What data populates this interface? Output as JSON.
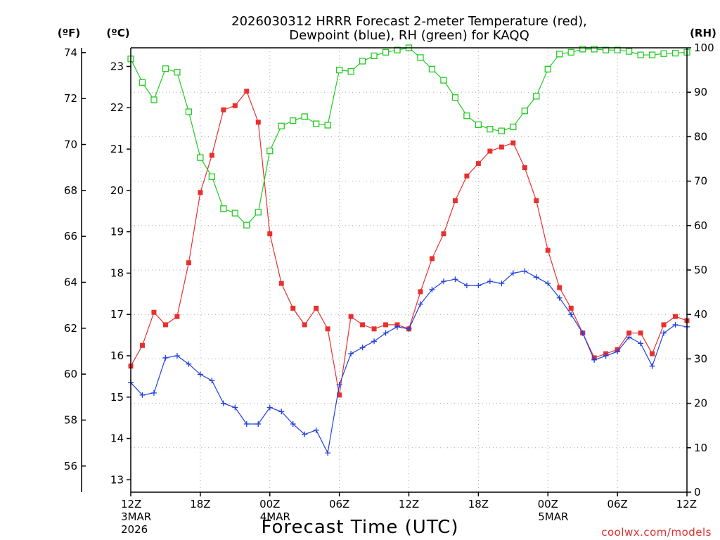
{
  "title_line1": "2026030312 HRRR Forecast 2-meter Temperature (red),",
  "title_line2": "Dewpoint (blue), RH (green) for KAQQ",
  "xlabel": "Forecast Time (UTC)",
  "credit": "coolwx.com/models",
  "unit_f": "(ºF)",
  "unit_c": "(ºC)",
  "unit_rh": "(RH)",
  "x_ticks": [
    "12Z",
    "18Z",
    "00Z",
    "06Z",
    "12Z",
    "18Z",
    "00Z",
    "06Z",
    "12Z"
  ],
  "date_labels": [
    {
      "x_hour": 0,
      "lines": [
        "3MAR",
        "2026"
      ]
    },
    {
      "x_hour": 12,
      "lines": [
        "4MAR"
      ]
    },
    {
      "x_hour": 36,
      "lines": [
        "5MAR"
      ]
    }
  ],
  "chart_data": {
    "type": "line",
    "x_unit": "forecast hour from 2026-03-03 12Z",
    "x": [
      0,
      1,
      2,
      3,
      4,
      5,
      6,
      7,
      8,
      9,
      10,
      11,
      12,
      13,
      14,
      15,
      16,
      17,
      18,
      19,
      20,
      21,
      22,
      23,
      24,
      25,
      26,
      27,
      28,
      29,
      30,
      31,
      32,
      33,
      34,
      35,
      36,
      37,
      38,
      39,
      40,
      41,
      42,
      43,
      44,
      45,
      46,
      47,
      48
    ],
    "xlim": [
      0,
      48
    ],
    "series": [
      {
        "name": "2-meter Temperature",
        "color": "#e83030",
        "marker": "filled-square",
        "axis": "celsius",
        "values": [
          15.75,
          16.25,
          17.05,
          16.75,
          16.95,
          18.25,
          19.95,
          20.85,
          21.95,
          22.05,
          22.4,
          21.65,
          18.95,
          17.75,
          17.15,
          16.75,
          17.15,
          16.65,
          15.05,
          16.95,
          16.75,
          16.65,
          16.75,
          16.75,
          16.65,
          17.55,
          18.35,
          18.95,
          19.75,
          20.35,
          20.65,
          20.95,
          21.05,
          21.15,
          20.55,
          19.75,
          18.55,
          17.65,
          17.15,
          16.55,
          15.95,
          16.05,
          16.15,
          16.55,
          16.55,
          16.05,
          16.75,
          16.95,
          16.85
        ]
      },
      {
        "name": "Dewpoint",
        "color": "#2040e0",
        "marker": "plus",
        "axis": "celsius",
        "values": [
          15.35,
          15.05,
          15.1,
          15.95,
          16.0,
          15.8,
          15.55,
          15.4,
          14.85,
          14.75,
          14.35,
          14.35,
          14.75,
          14.65,
          14.35,
          14.1,
          14.2,
          13.65,
          15.3,
          16.05,
          16.2,
          16.35,
          16.55,
          16.7,
          16.65,
          17.25,
          17.6,
          17.8,
          17.85,
          17.7,
          17.7,
          17.8,
          17.75,
          18.0,
          18.05,
          17.9,
          17.75,
          17.4,
          17.0,
          16.55,
          15.9,
          16.0,
          16.1,
          16.45,
          16.3,
          15.75,
          16.55,
          16.75,
          16.7
        ]
      },
      {
        "name": "RH",
        "color": "#20cc20",
        "marker": "open-square",
        "axis": "rh",
        "values": [
          97.5,
          92.2,
          88.3,
          95.3,
          94.5,
          85.6,
          75.3,
          71.0,
          63.8,
          62.8,
          60.1,
          63.0,
          76.8,
          82.4,
          83.6,
          84.5,
          82.9,
          82.6,
          95.0,
          94.7,
          97.0,
          98.2,
          99.0,
          99.5,
          100.0,
          97.8,
          95.2,
          92.7,
          88.8,
          84.7,
          82.7,
          81.7,
          81.3,
          82.2,
          85.8,
          89.1,
          95.2,
          98.6,
          99.0,
          99.7,
          99.7,
          99.5,
          99.5,
          99.2,
          98.4,
          98.4,
          98.7,
          98.8,
          99.0
        ]
      }
    ],
    "axes": {
      "celsius": {
        "ylim": [
          12.7,
          23.45
        ],
        "ticks": [
          13,
          14,
          15,
          16,
          17,
          18,
          19,
          20,
          21,
          22,
          23
        ]
      },
      "fahrenheit": {
        "ticks": [
          56,
          58,
          60,
          62,
          64,
          66,
          68,
          70,
          72,
          74
        ]
      },
      "rh": {
        "ylim": [
          0,
          100
        ],
        "ticks": [
          0,
          10,
          20,
          30,
          40,
          50,
          60,
          70,
          80,
          90,
          100
        ]
      }
    },
    "grid": true
  }
}
